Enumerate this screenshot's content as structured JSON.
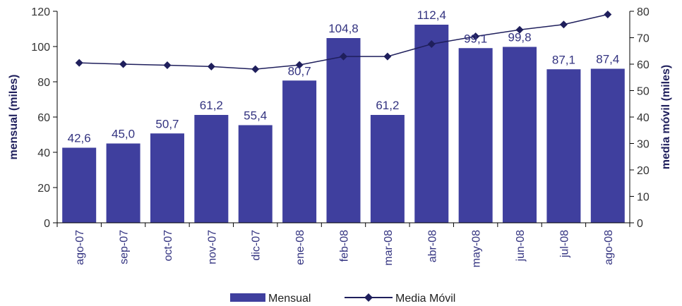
{
  "chart_data": {
    "type": "bar",
    "categories": [
      "ago-07",
      "sep-07",
      "oct-07",
      "nov-07",
      "dic-07",
      "ene-08",
      "feb-08",
      "mar-08",
      "abr-08",
      "may-08",
      "jun-08",
      "jul-08",
      "ago-08"
    ],
    "series": [
      {
        "name": "Mensual",
        "type": "bar",
        "axis": "left",
        "values": [
          42.6,
          45.0,
          50.7,
          61.2,
          55.4,
          80.7,
          104.8,
          61.2,
          112.4,
          99.1,
          99.8,
          87.1,
          87.4
        ],
        "labels": [
          "42,6",
          "45,0",
          "50,7",
          "61,2",
          "55,4",
          "80,7",
          "104,8",
          "61,2",
          "112,4",
          "99,1",
          "99,8",
          "87,1",
          "87,4"
        ]
      },
      {
        "name": "Media Móvil",
        "type": "line",
        "axis": "right",
        "marker": "diamond",
        "values": [
          60.5,
          60.0,
          59.6,
          59.1,
          58.1,
          59.7,
          62.9,
          62.9,
          67.6,
          70.5,
          73.0,
          75.0,
          78.8
        ]
      }
    ],
    "ylabel": "mensual (miles)",
    "y2label": "media móvil (miles)",
    "ylim": [
      0,
      120
    ],
    "y2lim": [
      0,
      80
    ],
    "yticks": [
      0,
      20,
      40,
      60,
      80,
      100,
      120
    ],
    "y2ticks": [
      0,
      10,
      20,
      30,
      40,
      50,
      60,
      70,
      80
    ],
    "legend_position": "bottom",
    "grid": false,
    "colors": {
      "bar": "#3f3f9e",
      "line": "#1f1f5c",
      "axis": "#000000"
    }
  }
}
